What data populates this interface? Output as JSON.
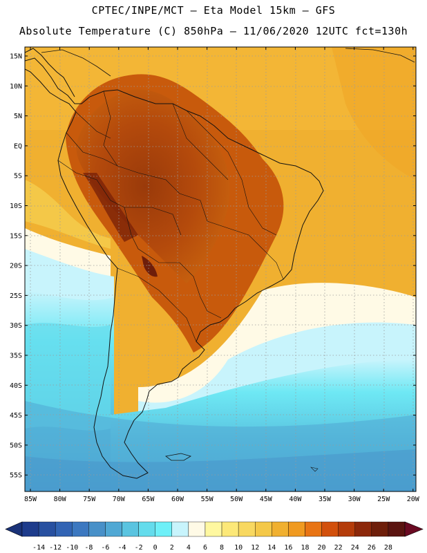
{
  "header": {
    "line1": "CPTEC/INPE/MCT –  Eta Model 15km – GFS",
    "line2": "Absolute Temperature (C) 850hPa – 11/06/2020 12UTC fct=130h"
  },
  "map": {
    "lat_labels": [
      "15N",
      "10N",
      "5N",
      "EQ",
      "5S",
      "10S",
      "15S",
      "20S",
      "25S",
      "30S",
      "35S",
      "40S",
      "45S",
      "50S",
      "55S"
    ],
    "lon_labels": [
      "85W",
      "80W",
      "75W",
      "70W",
      "65W",
      "60W",
      "55W",
      "50W",
      "45W",
      "40W",
      "35W",
      "30W",
      "25W",
      "20W"
    ]
  },
  "colorbar": {
    "labels": [
      "-14",
      "-12",
      "-10",
      "-8",
      "-6",
      "-4",
      "-2",
      "0",
      "2",
      "4",
      "6",
      "8",
      "10",
      "12",
      "14",
      "16",
      "18",
      "20",
      "22",
      "24",
      "26",
      "28"
    ],
    "colors": [
      "#1e3c8c",
      "#2850a0",
      "#3264b4",
      "#3c78c0",
      "#4890c8",
      "#50a8d4",
      "#5ac4e0",
      "#64dcec",
      "#6ef0f8",
      "#c8f4fc",
      "#fffae6",
      "#fff8a0",
      "#fce878",
      "#f8d860",
      "#f4c848",
      "#f0b030",
      "#f09a20",
      "#e87414",
      "#d2500c",
      "#b43c0a",
      "#8c280a",
      "#6e1e0a",
      "#5a1410"
    ]
  }
}
